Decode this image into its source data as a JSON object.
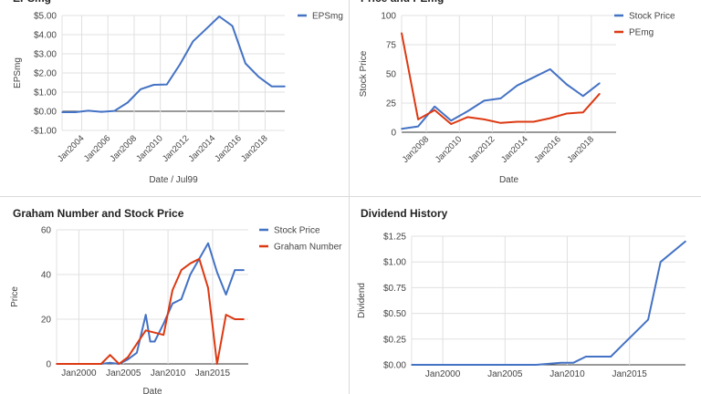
{
  "colors": {
    "blue": "#4472c4",
    "red": "#dc3912",
    "grid": "#e0e0e0",
    "axis": "#333333",
    "text": "#444444",
    "divider": "#d9d9d9"
  },
  "chart_data": [
    {
      "id": "epsmg",
      "type": "line",
      "title": "EPSmg",
      "xlabel": "Date / Jul99",
      "ylabel": "EPSmg",
      "ylim": [
        -1,
        5
      ],
      "yticks": [
        5,
        4,
        3,
        2,
        1,
        0,
        -1
      ],
      "ytick_labels": [
        "$5.00",
        "$4.00",
        "$3.00",
        "$2.00",
        "$1.00",
        "$0.00",
        "-$1.00"
      ],
      "xlim": [
        2002.5,
        2019.5
      ],
      "xticks": [
        2004,
        2006,
        2008,
        2010,
        2012,
        2014,
        2016,
        2018
      ],
      "xtick_labels": [
        "Jan2004",
        "Jan2006",
        "Jan2008",
        "Jan2010",
        "Jan2012",
        "Jan2014",
        "Jan2016",
        "Jan2018"
      ],
      "xtick_rotate": true,
      "grid": true,
      "legend": "top-right",
      "series": [
        {
          "name": "EPSmg",
          "color": "#4472c4",
          "x": [
            2002.5,
            2003.5,
            2004.5,
            2005.5,
            2006.5,
            2007.5,
            2008.5,
            2009.5,
            2010.5,
            2011.5,
            2012.5,
            2013.5,
            2014.5,
            2015.5,
            2016.5,
            2017.5,
            2018.5,
            2019.5
          ],
          "values": [
            -0.05,
            -0.05,
            0.03,
            -0.03,
            0.02,
            0.45,
            1.15,
            1.38,
            1.4,
            2.45,
            3.65,
            4.3,
            4.95,
            4.45,
            2.5,
            1.8,
            1.3,
            1.3
          ]
        }
      ]
    },
    {
      "id": "price-pe",
      "type": "line",
      "title": "Price and PEmg",
      "xlabel": "Date",
      "ylabel": "Stock Price",
      "ylim": [
        0,
        100
      ],
      "yticks": [
        100,
        75,
        50,
        25,
        0
      ],
      "ytick_labels": [
        "100",
        "75",
        "50",
        "25",
        "0"
      ],
      "xlim": [
        2006.5,
        2019.5
      ],
      "xticks": [
        2008,
        2010,
        2012,
        2014,
        2016,
        2018
      ],
      "xtick_labels": [
        "Jan2008",
        "Jan2010",
        "Jan2012",
        "Jan2014",
        "Jan2016",
        "Jan2018"
      ],
      "xtick_rotate": true,
      "grid": true,
      "legend": "top-right",
      "series": [
        {
          "name": "Stock Price",
          "color": "#4472c4",
          "x": [
            2006.5,
            2007.5,
            2008.5,
            2009.5,
            2010.5,
            2011.5,
            2012.5,
            2013.5,
            2014.5,
            2015.5,
            2016.5,
            2017.5,
            2018.5
          ],
          "values": [
            3,
            5,
            22,
            10,
            18,
            27,
            29,
            40,
            47,
            54,
            41,
            31,
            42
          ]
        },
        {
          "name": "PEmg",
          "color": "#dc3912",
          "x": [
            2006.5,
            2007.5,
            2008.5,
            2009.5,
            2010.5,
            2011.5,
            2012.5,
            2013.5,
            2014.5,
            2015.5,
            2016.5,
            2017.5,
            2018.5
          ],
          "values": [
            85,
            11,
            19,
            7,
            13,
            11,
            8,
            9,
            9,
            12,
            16,
            17,
            33
          ]
        }
      ]
    },
    {
      "id": "graham",
      "type": "line",
      "title": "Graham Number and Stock Price",
      "xlabel": "Date",
      "ylabel": "Price",
      "ylim": [
        0,
        60
      ],
      "yticks": [
        60,
        40,
        20,
        0
      ],
      "ytick_labels": [
        "60",
        "40",
        "20",
        "0"
      ],
      "xlim": [
        1997.5,
        2019
      ],
      "xticks": [
        2000,
        2005,
        2010,
        2015
      ],
      "xtick_labels": [
        "Jan2000",
        "Jan2005",
        "Jan2010",
        "Jan2015"
      ],
      "xtick_rotate": false,
      "grid": true,
      "legend": "top-right",
      "series": [
        {
          "name": "Stock Price",
          "color": "#4472c4",
          "x": [
            1997.5,
            2002.5,
            2003.5,
            2004.5,
            2005.5,
            2006.5,
            2007.5,
            2008,
            2008.5,
            2009.5,
            2010.5,
            2011.5,
            2012.5,
            2013.5,
            2014.5,
            2015.5,
            2016.5,
            2017.5,
            2018.5
          ],
          "values": [
            0,
            0,
            0.5,
            0,
            2,
            5,
            22,
            10,
            10,
            18,
            27,
            29,
            40,
            47,
            54,
            41,
            31,
            42,
            42
          ]
        },
        {
          "name": "Graham Number",
          "color": "#dc3912",
          "x": [
            1997.5,
            2002.5,
            2003.5,
            2004.5,
            2005.5,
            2006.5,
            2007.5,
            2008.5,
            2009.5,
            2010.5,
            2011.5,
            2012.5,
            2013.5,
            2014.5,
            2015.5,
            2016.5,
            2017.5,
            2018.5
          ],
          "values": [
            0,
            0,
            4,
            0,
            3,
            9,
            15,
            14,
            13,
            33,
            42,
            45,
            47,
            34,
            0,
            22,
            20,
            20
          ]
        }
      ]
    },
    {
      "id": "dividend",
      "type": "line",
      "title": "Dividend History",
      "xlabel": "",
      "ylabel": "Dividend",
      "ylim": [
        0,
        1.25
      ],
      "yticks": [
        1.25,
        1,
        0.75,
        0.5,
        0.25,
        0
      ],
      "ytick_labels": [
        "$1.25",
        "$1.00",
        "$0.75",
        "$0.50",
        "$0.25",
        "$0.00"
      ],
      "xlim": [
        1997.5,
        2019.5
      ],
      "xticks": [
        2000,
        2005,
        2010,
        2015
      ],
      "xtick_labels": [
        "Jan2000",
        "Jan2005",
        "Jan2010",
        "Jan2015"
      ],
      "xtick_rotate": false,
      "grid": true,
      "legend": "none",
      "series": [
        {
          "name": "",
          "color": "#4472c4",
          "x": [
            1997.5,
            2006.5,
            2007.5,
            2008.5,
            2009.5,
            2010.5,
            2011.5,
            2012.5,
            2013.5,
            2014.5,
            2015.5,
            2016.5,
            2017.5,
            2019.5
          ],
          "values": [
            0,
            0,
            0,
            0.01,
            0.02,
            0.02,
            0.08,
            0.08,
            0.08,
            0.2,
            0.32,
            0.44,
            1.0,
            1.2
          ]
        }
      ]
    }
  ]
}
